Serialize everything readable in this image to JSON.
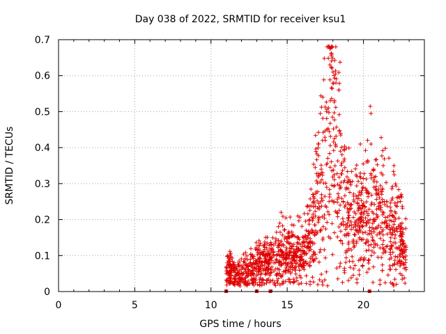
{
  "chart_data": {
    "type": "scatter",
    "title": "Day 038 of 2022, SRMTID for receiver ksu1",
    "xlabel": "GPS time / hours",
    "ylabel": "SRMTID / TECUs",
    "xlim": [
      0,
      24
    ],
    "ylim": [
      0,
      0.7
    ],
    "x_ticks": [
      "0",
      "5",
      "10",
      "15",
      "20"
    ],
    "y_ticks": [
      "0",
      "0.1",
      "0.2",
      "0.3",
      "0.4",
      "0.5",
      "0.6",
      "0.7"
    ],
    "grid": true,
    "marker": "+",
    "color": "#e00000",
    "data_gap_markers_x": [
      11.0,
      13.0,
      13.9,
      20.4
    ],
    "trend": [
      {
        "x": 11.0,
        "y": 0.06
      },
      {
        "x": 11.5,
        "y": 0.05
      },
      {
        "x": 12.0,
        "y": 0.05
      },
      {
        "x": 12.5,
        "y": 0.06
      },
      {
        "x": 13.0,
        "y": 0.07
      },
      {
        "x": 13.5,
        "y": 0.08
      },
      {
        "x": 14.0,
        "y": 0.08
      },
      {
        "x": 14.5,
        "y": 0.1
      },
      {
        "x": 15.0,
        "y": 0.11
      },
      {
        "x": 15.5,
        "y": 0.1
      },
      {
        "x": 16.0,
        "y": 0.11
      },
      {
        "x": 16.5,
        "y": 0.14
      },
      {
        "x": 17.0,
        "y": 0.25
      },
      {
        "x": 17.5,
        "y": 0.36
      },
      {
        "x": 17.8,
        "y": 0.5
      },
      {
        "x": 18.2,
        "y": 0.42
      },
      {
        "x": 18.6,
        "y": 0.28
      },
      {
        "x": 19.0,
        "y": 0.22
      },
      {
        "x": 19.5,
        "y": 0.18
      },
      {
        "x": 20.0,
        "y": 0.2
      },
      {
        "x": 20.5,
        "y": 0.21
      },
      {
        "x": 21.0,
        "y": 0.22
      },
      {
        "x": 21.5,
        "y": 0.2
      },
      {
        "x": 22.0,
        "y": 0.17
      },
      {
        "x": 22.5,
        "y": 0.13
      },
      {
        "x": 22.8,
        "y": 0.1
      }
    ],
    "peaks": [
      {
        "x": 17.8,
        "y": 0.675
      },
      {
        "x": 17.9,
        "y": 0.655
      },
      {
        "x": 18.0,
        "y": 0.61
      },
      {
        "x": 18.2,
        "y": 0.58
      },
      {
        "x": 18.4,
        "y": 0.56
      },
      {
        "x": 17.6,
        "y": 0.45
      },
      {
        "x": 17.5,
        "y": 0.42
      },
      {
        "x": 20.45,
        "y": 0.515
      },
      {
        "x": 20.5,
        "y": 0.495
      },
      {
        "x": 20.5,
        "y": 0.41
      },
      {
        "x": 19.8,
        "y": 0.41
      },
      {
        "x": 20.2,
        "y": 0.36
      },
      {
        "x": 21.3,
        "y": 0.35
      },
      {
        "x": 22.0,
        "y": 0.35
      },
      {
        "x": 15.7,
        "y": 0.21
      },
      {
        "x": 14.6,
        "y": 0.22
      }
    ]
  }
}
